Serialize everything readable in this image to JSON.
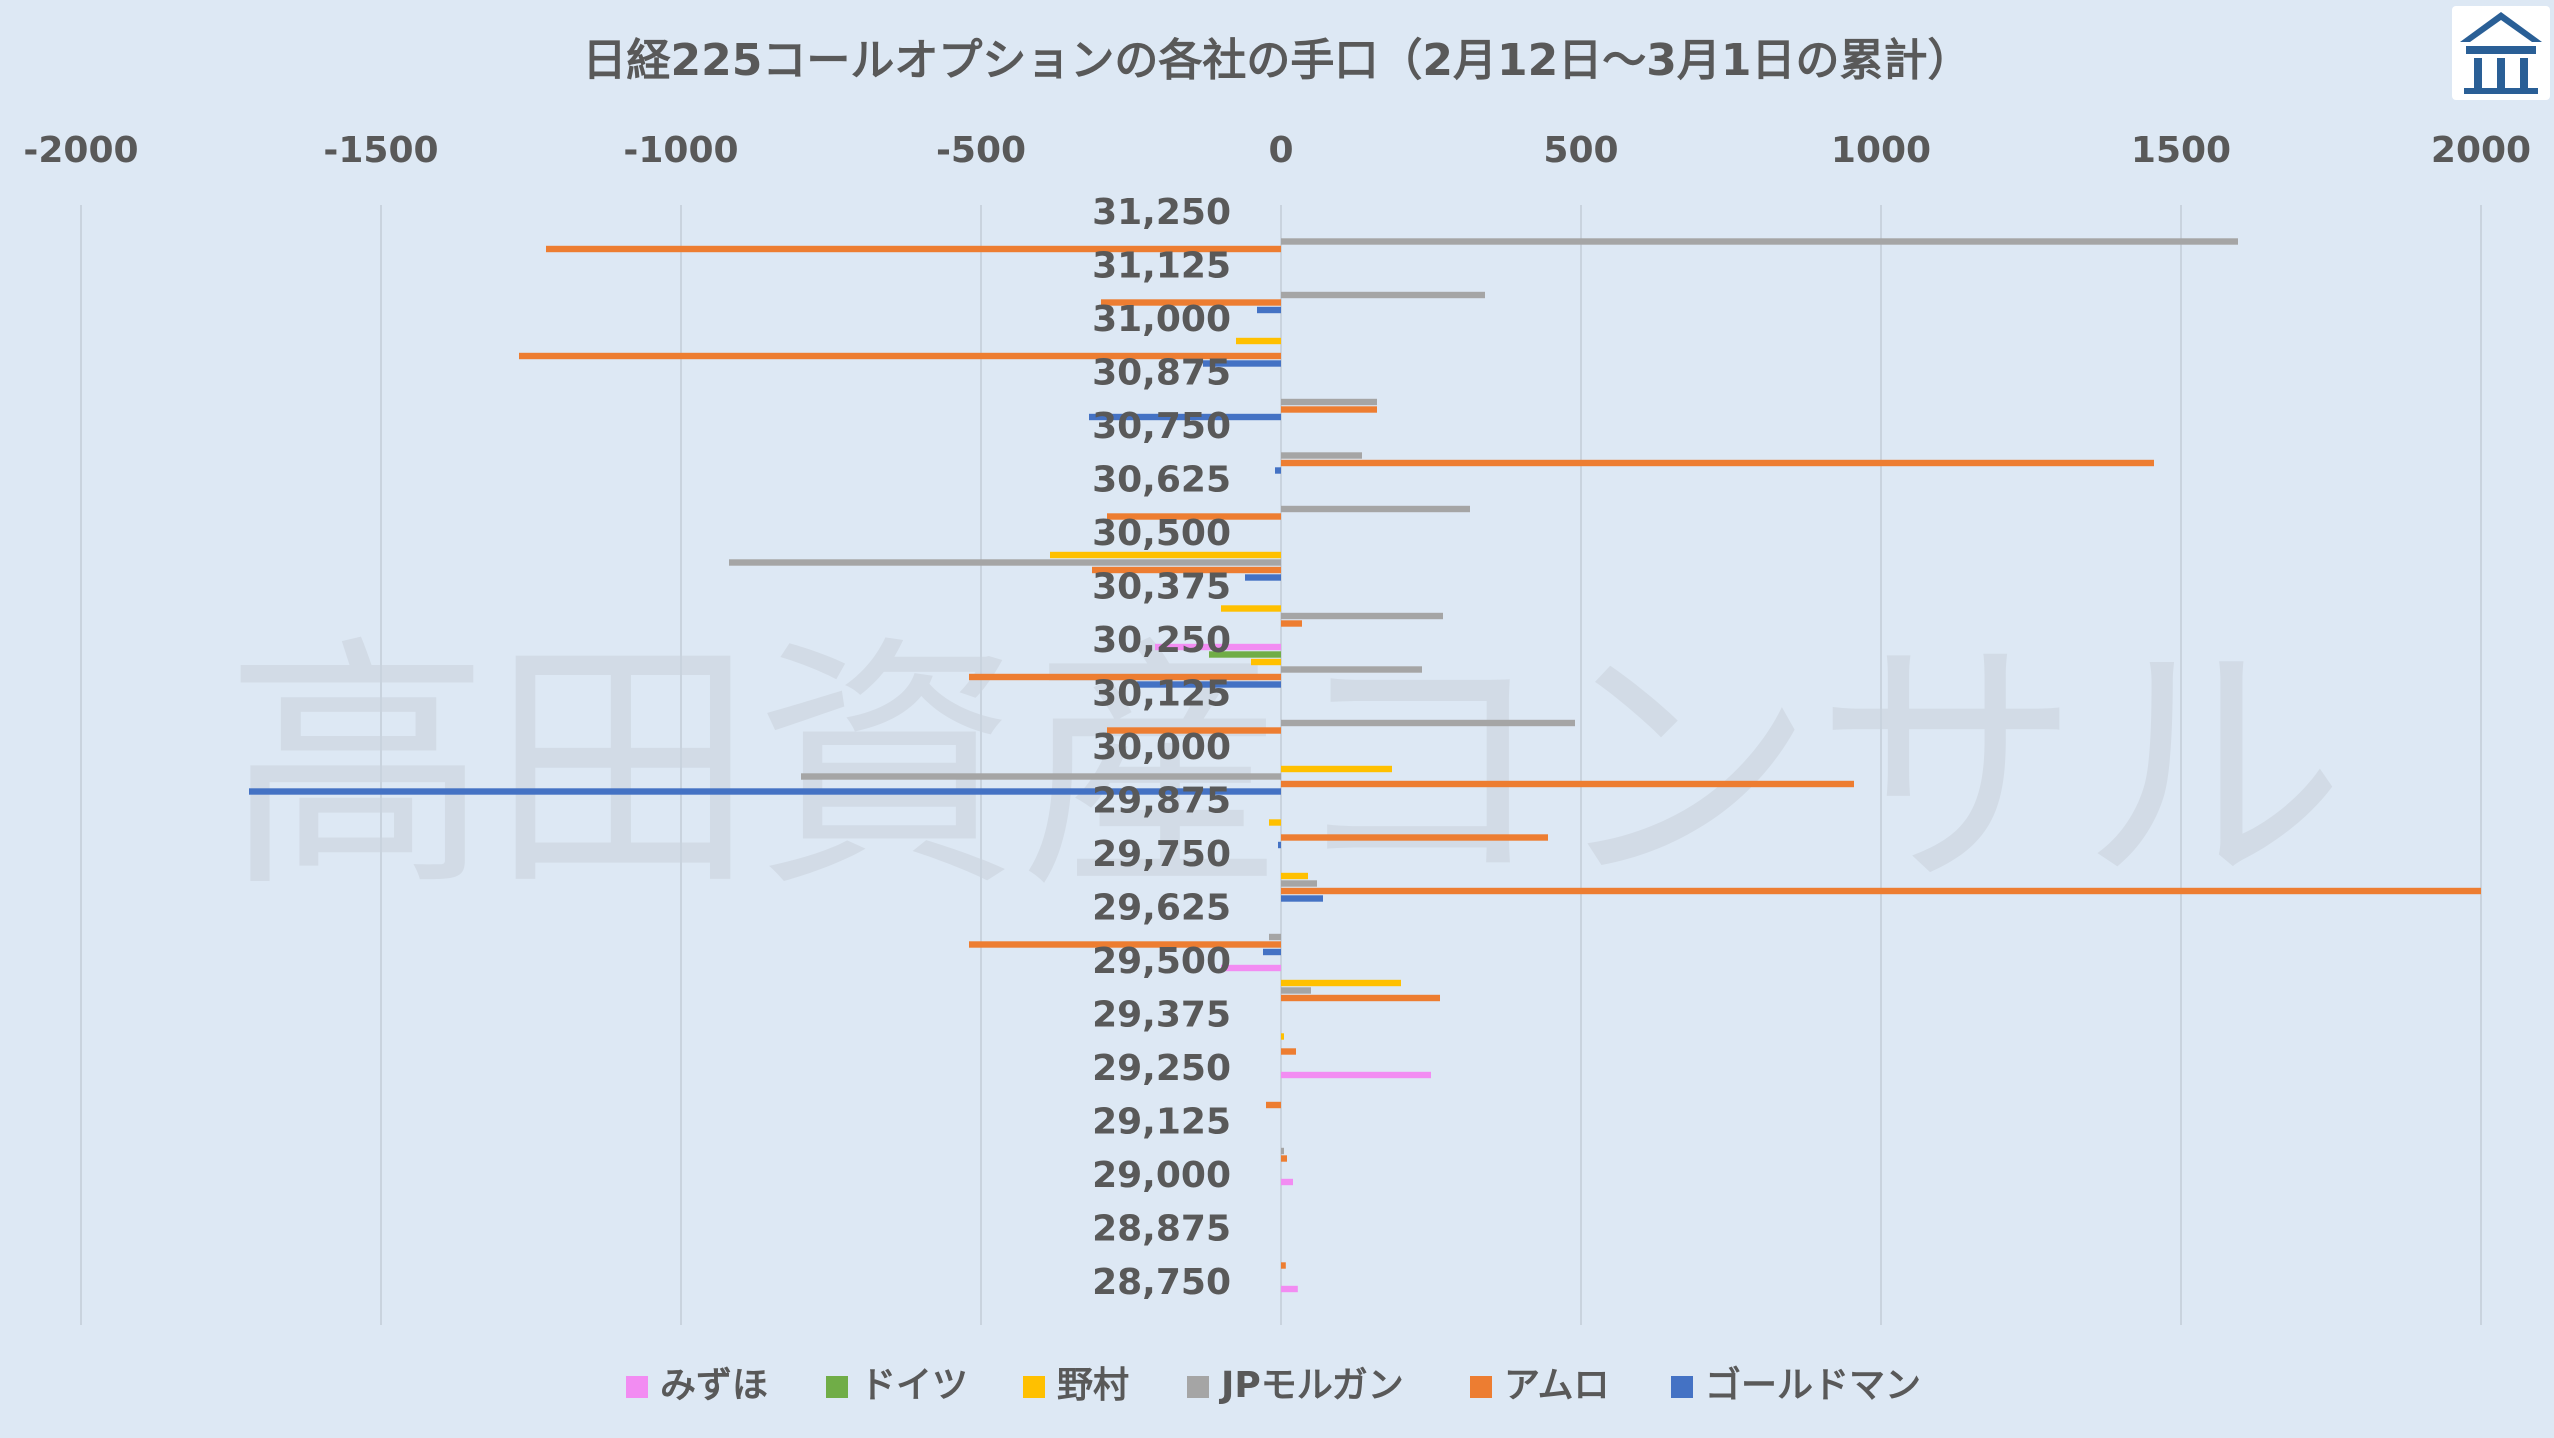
{
  "watermark": "高田資産コンサル",
  "logo_color": "#2a5f96",
  "chart_data": {
    "type": "bar",
    "orientation": "horizontal",
    "title": "日経225コールオプションの各社の手口（2月12日～3月1日の累計）",
    "xlim": [
      -2000,
      2000
    ],
    "x_ticks": [
      -2000,
      -1500,
      -1000,
      -500,
      0,
      500,
      1000,
      1500,
      2000
    ],
    "x_tick_labels": [
      "-2000",
      "-1500",
      "-1000",
      "-500",
      "0",
      "500",
      "1000",
      "1500",
      "2000"
    ],
    "grid": true,
    "legend_position": "bottom",
    "categories": [
      "31,250",
      "31,125",
      "31,000",
      "30,875",
      "30,750",
      "30,625",
      "30,500",
      "30,375",
      "30,250",
      "30,125",
      "30,000",
      "29,875",
      "29,750",
      "29,625",
      "29,500",
      "29,375",
      "29,250",
      "29,125",
      "29,000",
      "28,875",
      "28,750"
    ],
    "series": [
      {
        "name": "みずほ",
        "color": "#f28cf2",
        "values": [
          0,
          0,
          0,
          0,
          0,
          0,
          0,
          0,
          -210,
          0,
          0,
          0,
          0,
          0,
          -100,
          0,
          250,
          0,
          20,
          0,
          28
        ]
      },
      {
        "name": "ドイツ",
        "color": "#70ad47",
        "values": [
          0,
          0,
          0,
          0,
          0,
          0,
          0,
          0,
          -120,
          0,
          0,
          0,
          0,
          0,
          0,
          0,
          0,
          0,
          0,
          0,
          0
        ]
      },
      {
        "name": "野村",
        "color": "#ffc000",
        "values": [
          0,
          0,
          -75,
          0,
          0,
          0,
          -385,
          -100,
          -50,
          0,
          185,
          -20,
          45,
          0,
          200,
          5,
          0,
          0,
          0,
          0,
          0
        ]
      },
      {
        "name": "JPモルガン",
        "color": "#a5a5a5",
        "values": [
          1595,
          340,
          0,
          160,
          135,
          315,
          -920,
          270,
          235,
          490,
          -800,
          0,
          60,
          -20,
          50,
          0,
          0,
          5,
          0,
          0,
          0
        ]
      },
      {
        "name": "アムロ",
        "color": "#ed7d31",
        "values": [
          -1225,
          -300,
          -1270,
          160,
          1455,
          -290,
          -315,
          35,
          -520,
          -290,
          955,
          445,
          2000,
          -520,
          265,
          25,
          -25,
          10,
          0,
          8,
          0
        ]
      },
      {
        "name": "ゴールドマン",
        "color": "#4472c4",
        "values": [
          0,
          -40,
          -130,
          -320,
          -10,
          0,
          -60,
          0,
          -240,
          0,
          -1720,
          -5,
          70,
          -30,
          0,
          0,
          0,
          0,
          0,
          0,
          0
        ]
      }
    ]
  }
}
